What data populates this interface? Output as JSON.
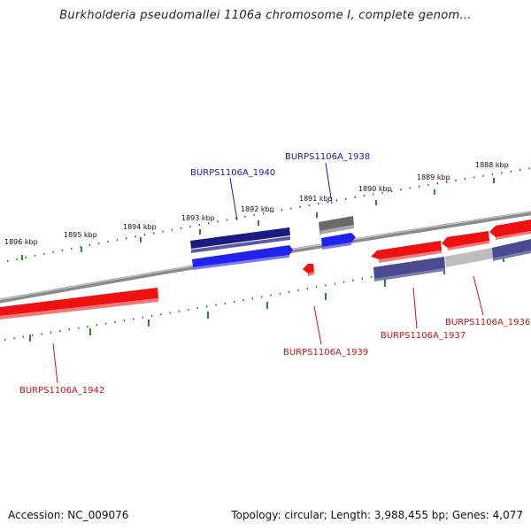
{
  "title": "Burkholderia pseudomallei 1106a chromosome I, complete genom...",
  "footer": {
    "accession": "Accession: NC_009076",
    "summary": "Topology: circular; Length: 3,988,455 bp; Genes: 4,077"
  },
  "colors": {
    "background": "#ffffff",
    "backbone": "#8a8a8a",
    "tick": "#2a8a2a",
    "forward_label": "#1a1aa8",
    "reverse_label": "#cc1111",
    "gene_red": "#ee1111",
    "gene_blue": "#2222ee",
    "gene_navy": "#1a1a80",
    "gene_purple": "#4a4a8e",
    "gene_gray": "#6a6a6a",
    "gene_lightgray": "#bdbdbd"
  },
  "scale_labels": [
    "1896 kbp",
    "1895 kbp",
    "1894 kbp",
    "1893 kbp",
    "1892 kbp",
    "1891 kbp",
    "1890 kbp",
    "1889 kbp",
    "1888 kbp"
  ],
  "gene_labels": [
    {
      "name": "BURPS1106A_1940",
      "strand": "forward"
    },
    {
      "name": "BURPS1106A_1938",
      "strand": "forward"
    },
    {
      "name": "BURPS1106A_1942",
      "strand": "reverse"
    },
    {
      "name": "BURPS1106A_1939",
      "strand": "reverse"
    },
    {
      "name": "BURPS1106A_1937",
      "strand": "reverse"
    },
    {
      "name": "BURPS1106A_1936",
      "strand": "reverse"
    }
  ]
}
